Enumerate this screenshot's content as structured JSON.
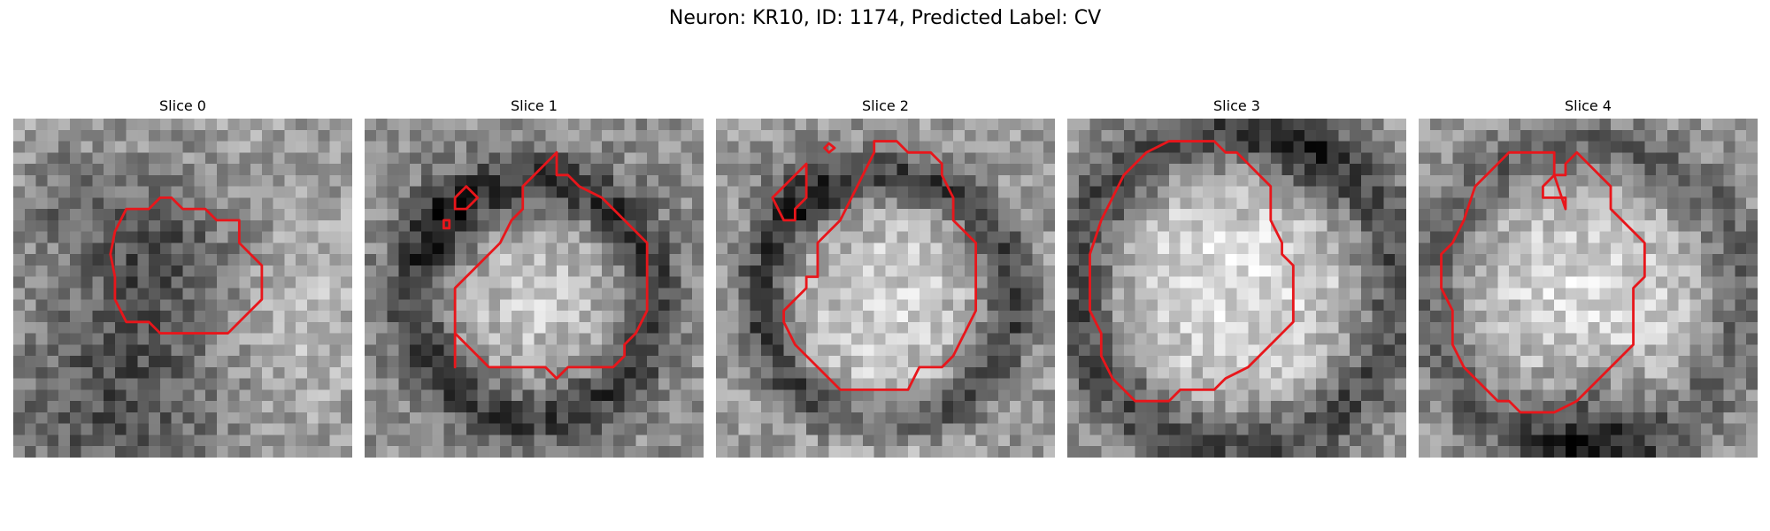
{
  "figure": {
    "title": "Neuron: KR10, ID: 1174, Predicted Label: CV"
  },
  "panels": [
    {
      "title": "Slice 0"
    },
    {
      "title": "Slice 1"
    },
    {
      "title": "Slice 2"
    },
    {
      "title": "Slice 3"
    },
    {
      "title": "Slice 4"
    }
  ],
  "colors": {
    "contour": "#e8161b",
    "background": "#ffffff"
  }
}
